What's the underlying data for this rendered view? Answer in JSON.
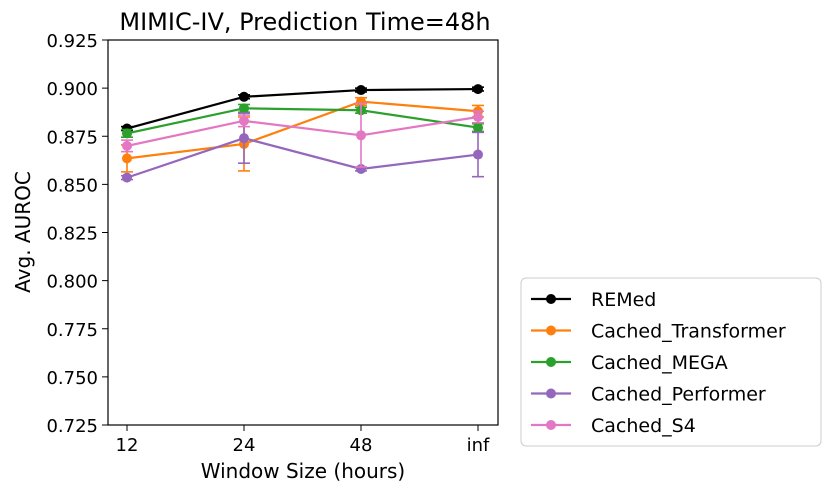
{
  "chart_data": {
    "type": "line",
    "title": "MIMIC-IV, Prediction Time=48h",
    "xlabel": "Window Size (hours)",
    "ylabel": "Avg. AUROC",
    "categories": [
      "12",
      "24",
      "48",
      "inf"
    ],
    "ylim": [
      0.725,
      0.925
    ],
    "yticks": [
      "0.725",
      "0.750",
      "0.775",
      "0.800",
      "0.825",
      "0.850",
      "0.875",
      "0.900",
      "0.925"
    ],
    "legend_position": "outside-bottom-right",
    "series": [
      {
        "name": "REMed",
        "color": "#000000",
        "values": [
          0.879,
          0.8955,
          0.899,
          0.8995
        ],
        "errors": [
          0.001,
          0.001,
          0.001,
          0.001
        ]
      },
      {
        "name": "Cached_Transformer",
        "color": "#ff7f0e",
        "values": [
          0.8635,
          0.871,
          0.893,
          0.888
        ],
        "errors": [
          0.007,
          0.014,
          0.002,
          0.003
        ]
      },
      {
        "name": "Cached_MEGA",
        "color": "#2ca02c",
        "values": [
          0.8765,
          0.8895,
          0.8885,
          0.8795
        ],
        "errors": [
          0.002,
          0.002,
          0.0015,
          0.002
        ]
      },
      {
        "name": "Cached_Performer",
        "color": "#9467bd",
        "values": [
          0.8535,
          0.874,
          0.858,
          0.8655
        ],
        "errors": [
          0.001,
          0.013,
          0.001,
          0.0115
        ]
      },
      {
        "name": "Cached_S4",
        "color": "#e377c2",
        "values": [
          0.87,
          0.883,
          0.8755,
          0.885
        ],
        "errors": [
          0.003,
          0.003,
          0.0165,
          0.003
        ]
      }
    ]
  }
}
